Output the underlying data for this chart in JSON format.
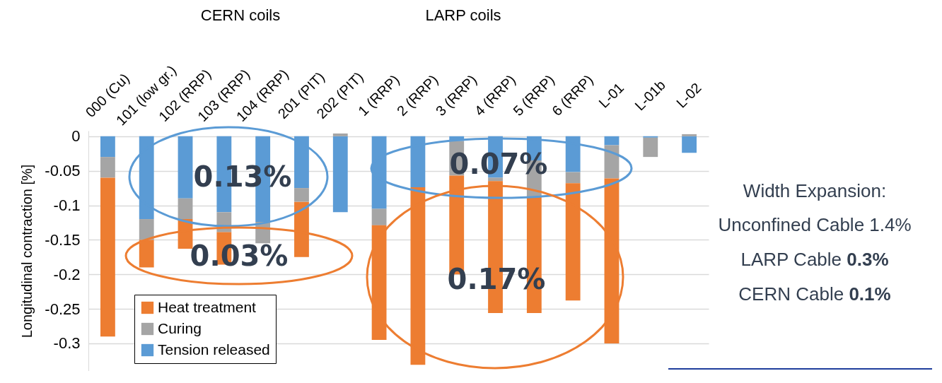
{
  "chart_data": {
    "type": "bar",
    "stacked": true,
    "ylabel": "Longitudinal contraction [%]",
    "categories": [
      "000 (Cu)",
      "101 (low gr.)",
      "102 (RRP)",
      "103 (RRP)",
      "104 (RRP)",
      "201 (PIT)",
      "202 (PIT)",
      "1 (RRP)",
      "2 (RRP)",
      "3 (RRP)",
      "4 (RRP)",
      "5 (RRP)",
      "6 (RRP)",
      "L-01",
      "L-01b",
      "L-02"
    ],
    "series": [
      {
        "name": "Tension released",
        "color": "#5b9bd5",
        "values": [
          -0.03,
          -0.12,
          -0.09,
          -0.11,
          -0.124,
          -0.075,
          -0.11,
          -0.105,
          -0.074,
          -0.007,
          -0.06,
          -0.035,
          -0.052,
          -0.013,
          -0.002,
          -0.024
        ]
      },
      {
        "name": "Curing",
        "color": "#a5a5a5",
        "values": [
          -0.03,
          -0.03,
          -0.03,
          -0.029,
          -0.031,
          -0.02,
          0.004,
          -0.024,
          0,
          -0.05,
          -0.005,
          -0.053,
          -0.016,
          -0.048,
          -0.028,
          0.003
        ]
      },
      {
        "name": "Heat treatment",
        "color": "#ed7d31",
        "values": [
          -0.23,
          -0.04,
          -0.043,
          -0.047,
          0,
          -0.08,
          0,
          -0.166,
          -0.257,
          -0.143,
          -0.191,
          -0.168,
          -0.17,
          -0.239,
          0,
          0
        ]
      }
    ],
    "ylim": [
      -0.34,
      0.008
    ],
    "yticks": [
      -0.3,
      -0.25,
      -0.2,
      -0.15,
      -0.1,
      -0.05,
      0
    ],
    "grid": "y",
    "legend": "bottom left",
    "annotations": [
      "CERN coils",
      "LARP coils",
      "0.13%",
      "0.03%",
      "0.07%",
      "0.17%",
      "Width Expansion:",
      "Unconfined Cable 1.4%",
      "LARP Cable 0.3%",
      "CERN Cable 0.1%"
    ]
  }
}
